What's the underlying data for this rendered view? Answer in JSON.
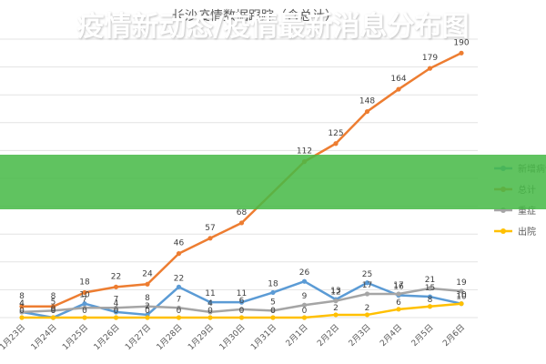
{
  "banner": {
    "text": "疫情新动态/疫情最新消息分布图"
  },
  "chart_data": {
    "type": "line",
    "title": "长沙疫情数据跟踪（含总计）",
    "categories": [
      "1月23日",
      "1月24日",
      "1月25日",
      "1月26日",
      "1月27日",
      "1月28日",
      "1月29日",
      "1月30日",
      "1月31日",
      "2月1日",
      "2月2日",
      "2月3日",
      "2月4日",
      "2月5日",
      "2月6日"
    ],
    "ylim": [
      0,
      200
    ],
    "grid": true,
    "legend_position": "right",
    "series": [
      {
        "name": "新增病例",
        "color": "#5b9bd5",
        "values": [
          4,
          0,
          10,
          4,
          2,
          22,
          11,
          11,
          18,
          26,
          13,
          25,
          16,
          15,
          10
        ]
      },
      {
        "name": "总计",
        "color": "#ed7d31",
        "values": [
          8,
          8,
          18,
          22,
          24,
          46,
          57,
          68,
          null,
          112,
          125,
          148,
          164,
          179,
          190
        ]
      },
      {
        "name": "重症",
        "color": "#a5a5a5",
        "values": [
          4,
          5,
          7,
          7,
          8,
          7,
          4,
          6,
          5,
          9,
          12,
          17,
          17,
          21,
          19
        ]
      },
      {
        "name": "出院",
        "color": "#ffc000",
        "values": [
          0,
          0,
          0,
          0,
          0,
          0,
          0,
          0,
          0,
          0,
          2,
          2,
          6,
          8,
          10
        ]
      }
    ]
  }
}
